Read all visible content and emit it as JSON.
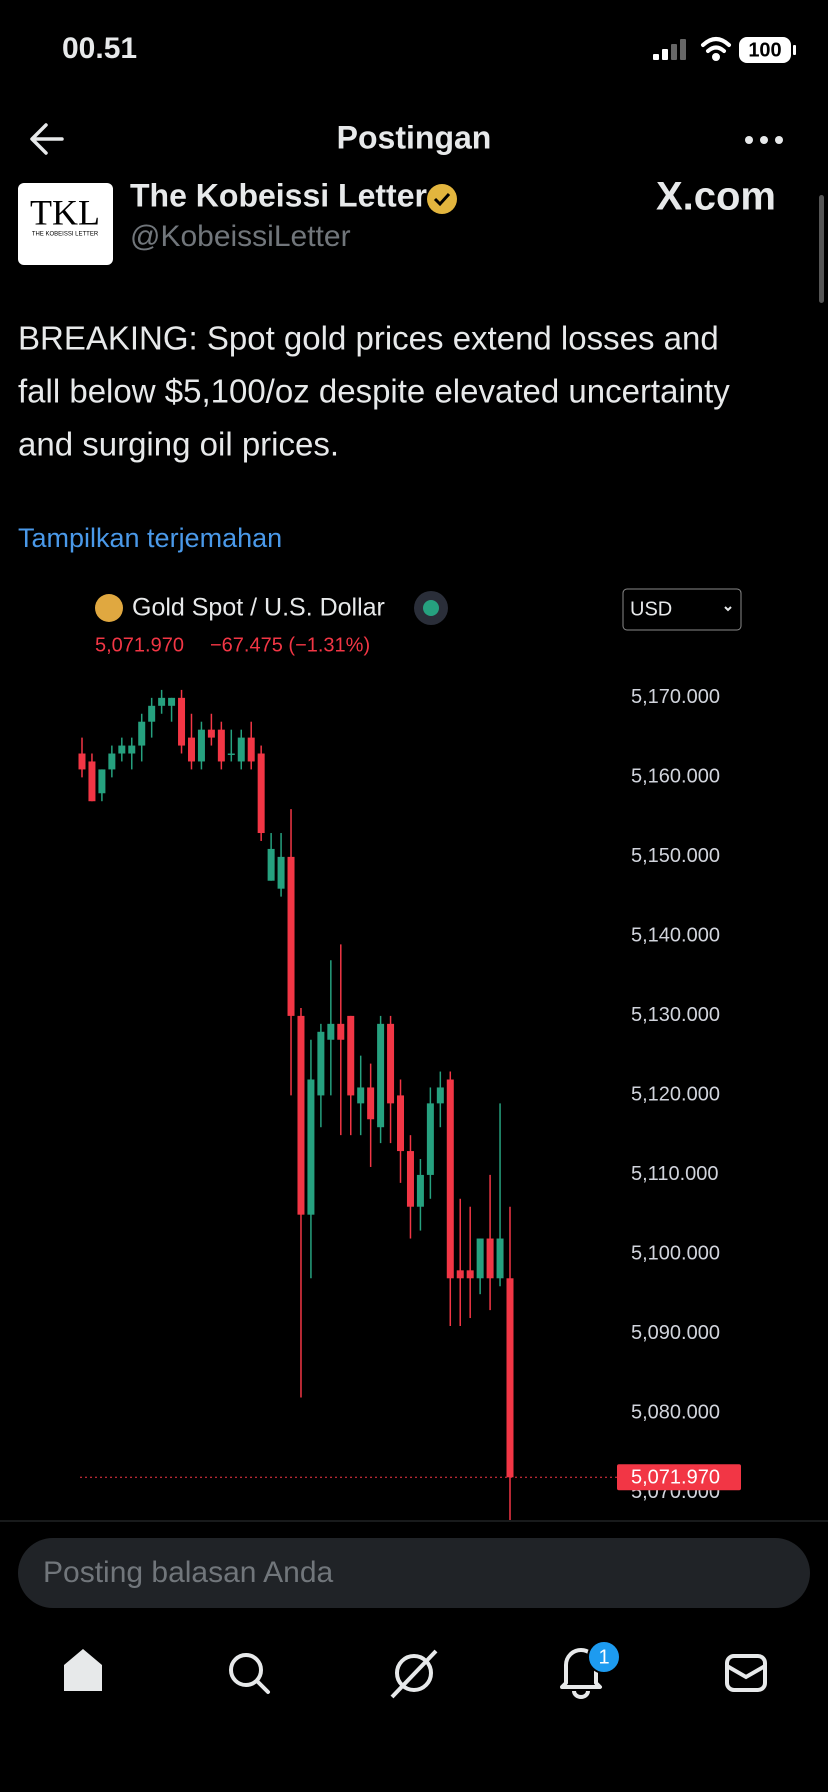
{
  "status_bar": {
    "time": "00.51",
    "battery": "100"
  },
  "header": {
    "title": "Postingan"
  },
  "author": {
    "avatar_text": "TKL",
    "avatar_subtext": "THE KOBEISSI LETTER",
    "name": "The Kobeissi Letter",
    "handle": "@KobeissiLetter"
  },
  "watermark": "X.com",
  "post": {
    "lines": [
      "BREAKING: Spot gold prices extend losses and",
      "fall below $5,100/oz despite elevated uncertainty",
      "and surging oil prices."
    ],
    "translate": "Tampilkan terjemahan"
  },
  "chart_data": {
    "type": "candlestick",
    "title": "Gold Spot / U.S. Dollar",
    "quote": "5,071.970",
    "change": "−67.475 (−1.31%)",
    "currency": "USD",
    "open": [
      5163,
      5162,
      5158,
      5161,
      5163,
      5163,
      5164,
      5167,
      5169,
      5169,
      5170,
      5165,
      5162,
      5166,
      5166,
      5163,
      5162,
      5165,
      5163,
      5147,
      5146,
      5150,
      5130,
      5105,
      5120,
      5127,
      5129,
      5130,
      5119,
      5121,
      5116,
      5129,
      5120,
      5113,
      5106,
      5110,
      5119,
      5122,
      5098,
      5098,
      5097,
      5102,
      5097,
      5097
    ],
    "high": [
      5165,
      5163,
      5161,
      5164,
      5165,
      5165,
      5168,
      5170,
      5171,
      5170,
      5171,
      5168,
      5167,
      5168,
      5167,
      5166,
      5166,
      5167,
      5164,
      5153,
      5153,
      5156,
      5131,
      5127,
      5129,
      5137,
      5139,
      5130,
      5125,
      5124,
      5130,
      5130,
      5122,
      5115,
      5112,
      5121,
      5123,
      5123,
      5107,
      5106,
      5102,
      5110,
      5119,
      5106
    ],
    "low": [
      5160,
      5157,
      5157,
      5160,
      5162,
      5161,
      5162,
      5165,
      5168,
      5167,
      5163,
      5161,
      5161,
      5164,
      5161,
      5162,
      5161,
      5161,
      5152,
      5147,
      5145,
      5120,
      5082,
      5097,
      5116,
      5120,
      5115,
      5115,
      5115,
      5111,
      5114,
      5114,
      5109,
      5102,
      5103,
      5107,
      5116,
      5091,
      5091,
      5092,
      5095,
      5093,
      5096,
      5066
    ],
    "close": [
      5161,
      5157,
      5161,
      5163,
      5164,
      5164,
      5167,
      5169,
      5170,
      5170,
      5164,
      5162,
      5166,
      5165,
      5162,
      5163,
      5165,
      5162,
      5153,
      5151,
      5150,
      5130,
      5105,
      5122,
      5128,
      5129,
      5127,
      5120,
      5121,
      5117,
      5129,
      5119,
      5113,
      5106,
      5110,
      5119,
      5121,
      5097,
      5097,
      5097,
      5102,
      5097,
      5102,
      5071.97
    ],
    "up_color": "#26a17f",
    "down_color": "#f23645",
    "ylim": [
      5066.6,
      5173
    ],
    "yticks": [
      {
        "value": 5070,
        "label": "5,070.000"
      },
      {
        "value": 5080,
        "label": "5,080.000"
      },
      {
        "value": 5090,
        "label": "5,090.000"
      },
      {
        "value": 5100,
        "label": "5,100.000"
      },
      {
        "value": 5110,
        "label": "5,110.000"
      },
      {
        "value": 5120,
        "label": "5,120.000"
      },
      {
        "value": 5130,
        "label": "5,130.000"
      },
      {
        "value": 5140,
        "label": "5,140.000"
      },
      {
        "value": 5150,
        "label": "5,150.000"
      },
      {
        "value": 5160,
        "label": "5,160.000"
      },
      {
        "value": 5170,
        "label": "5,170.000"
      }
    ],
    "last": {
      "value": 5071.97,
      "label": "5,071.970"
    }
  },
  "reply": {
    "placeholder": "Posting balasan Anda"
  },
  "nav": {
    "notification_count": "1"
  }
}
